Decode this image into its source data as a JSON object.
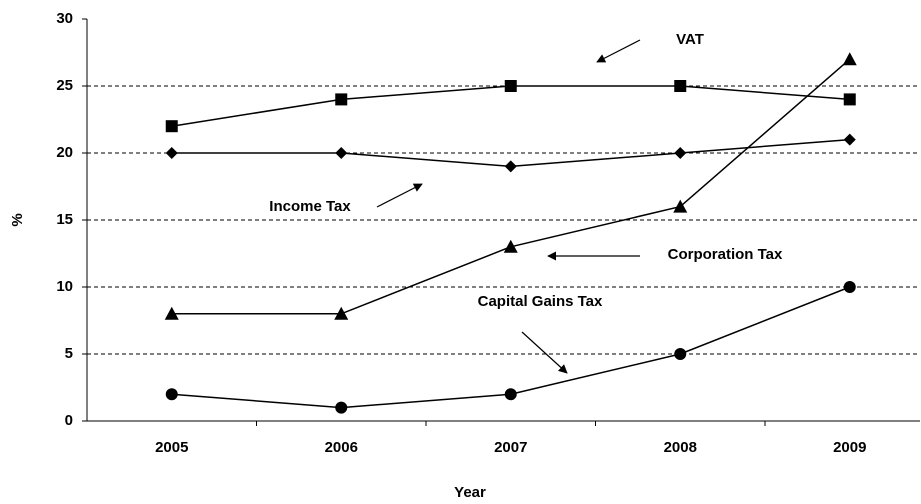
{
  "chart_data": {
    "type": "line",
    "x_label": "Year",
    "y_label": "%",
    "categories": [
      "2005",
      "2006",
      "2007",
      "2008",
      "2009"
    ],
    "series": [
      {
        "name": "VAT",
        "color": "#000000",
        "marker": "square",
        "values": [
          22,
          24,
          25,
          25,
          24
        ]
      },
      {
        "name": "Income Tax",
        "color": "#000000",
        "marker": "diamond",
        "values": [
          20,
          20,
          19,
          20,
          21
        ]
      },
      {
        "name": "Corporation Tax",
        "color": "#000000",
        "marker": "triangle",
        "values": [
          8,
          8,
          13,
          16,
          27
        ]
      },
      {
        "name": "Capital Gains Tax",
        "color": "#000000",
        "marker": "circle",
        "values": [
          2,
          1,
          2,
          5,
          10
        ]
      }
    ],
    "ylim": [
      0,
      30
    ],
    "yticks": [
      0,
      5,
      10,
      15,
      20,
      25,
      30
    ],
    "grid": true
  }
}
